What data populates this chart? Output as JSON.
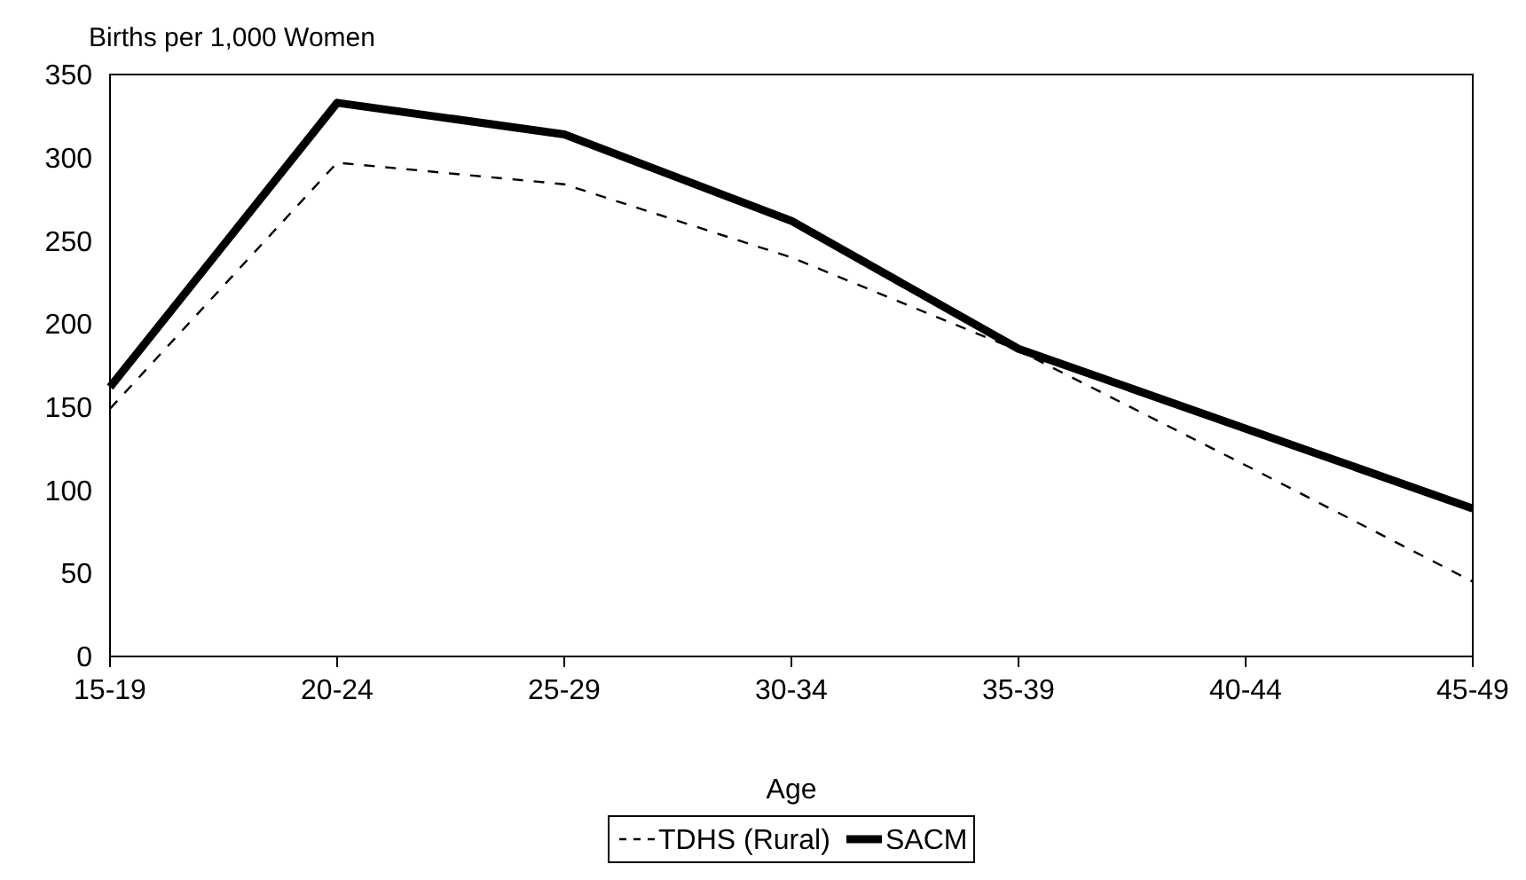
{
  "chart_data": {
    "type": "line",
    "ylabel": "Births per 1,000 Women",
    "xlabel": "Age",
    "categories": [
      "15-19",
      "20-24",
      "25-29",
      "30-34",
      "35-39",
      "40-44",
      "45-49"
    ],
    "series": [
      {
        "name": "TDHS (Rural)",
        "color": "#000000",
        "line_style": "dashed",
        "values": [
          149,
          297,
          284,
          240,
          184,
          115,
          45
        ]
      },
      {
        "name": "SACM",
        "color": "#000000",
        "line_style": "solid",
        "values": [
          162,
          333,
          314,
          262,
          185,
          137,
          89
        ]
      }
    ],
    "ylim": [
      0,
      350
    ],
    "yticks": [
      0,
      50,
      100,
      150,
      200,
      250,
      300,
      350
    ],
    "legend": "bottom",
    "grid": false
  }
}
